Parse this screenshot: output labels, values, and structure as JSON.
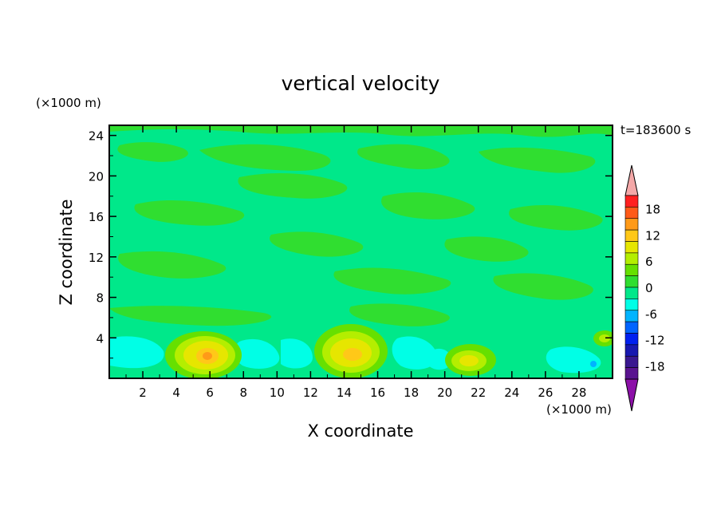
{
  "chart_data": {
    "type": "heatmap",
    "title": "vertical velocity",
    "time_label": "t=183600 s",
    "xlabel": "X coordinate",
    "ylabel": "Z coordinate",
    "x_unit": "(×1000 m)",
    "y_unit": "(×1000 m)",
    "xlim": [
      0,
      30
    ],
    "ylim": [
      0,
      25
    ],
    "x_ticks": [
      2,
      4,
      6,
      8,
      10,
      12,
      14,
      16,
      18,
      20,
      22,
      24,
      26,
      28
    ],
    "y_ticks": [
      4,
      8,
      12,
      16,
      20,
      24
    ],
    "grid": false,
    "colorbar": {
      "labels": [
        18,
        12,
        6,
        0,
        -6,
        -12,
        -18
      ],
      "levels": [
        21,
        18,
        15,
        12,
        9,
        6,
        3,
        0,
        -3,
        -6,
        -9,
        -12,
        -15,
        -18,
        -21
      ],
      "colors": [
        "#ff2020",
        "#ff5a18",
        "#ff9a18",
        "#ffc818",
        "#e6e600",
        "#b4ee00",
        "#66e000",
        "#30de30",
        "#00e88a",
        "#00ffe6",
        "#00b4ff",
        "#0064ff",
        "#0020f0",
        "#1818b0",
        "#3a1890",
        "#5a1490"
      ],
      "over_color": "#f4a8a8",
      "under_color": "#8c10a8"
    },
    "features": [
      {
        "x": 6.0,
        "z": 2.3,
        "value": 10,
        "label": "updraft"
      },
      {
        "x": 14.5,
        "z": 2.5,
        "value": 8,
        "label": "updraft"
      },
      {
        "x": 21.5,
        "z": 1.6,
        "value": 5,
        "label": "updraft"
      },
      {
        "x": 29.3,
        "z": 3.9,
        "value": 3,
        "label": "updraft"
      },
      {
        "x": 1.5,
        "z": 2.0,
        "value": -2,
        "label": "downdraft"
      },
      {
        "x": 9.0,
        "z": 1.8,
        "value": -3,
        "label": "downdraft"
      },
      {
        "x": 11.5,
        "z": 1.8,
        "value": -2,
        "label": "downdraft"
      },
      {
        "x": 18.0,
        "z": 1.8,
        "value": -3,
        "label": "downdraft"
      },
      {
        "x": 25.0,
        "z": 1.5,
        "value": -2,
        "label": "downdraft"
      },
      {
        "x": 28.8,
        "z": 1.3,
        "value": -4,
        "label": "downdraft"
      }
    ]
  }
}
